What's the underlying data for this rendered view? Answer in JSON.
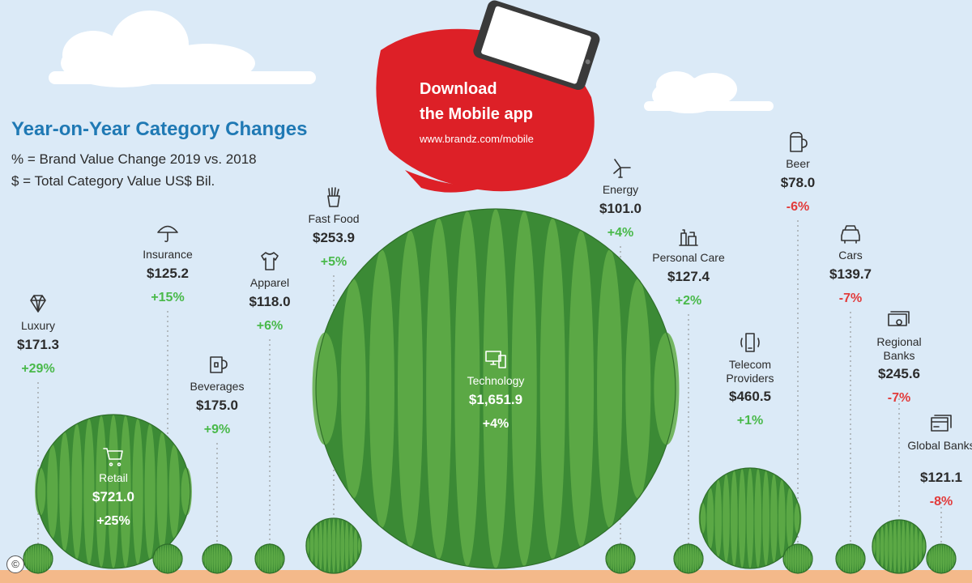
{
  "header": {
    "title": "Year-on-Year Category Changes",
    "legend_pct": "% = Brand Value Change 2019 vs. 2018",
    "legend_value": "$ = Total Category Value US$ Bil."
  },
  "promo": {
    "line1": "Download",
    "line2": "the Mobile app",
    "url": "www.brandz.com/mobile"
  },
  "copyright": "©",
  "colors": {
    "positive": "#49b94a",
    "negative": "#e23b3b",
    "melon_dark": "#3b8a35",
    "melon_light": "#62ad48",
    "promo": "#dd2027",
    "sky": "#dbeaf7",
    "ground": "#f4b98a"
  },
  "chart_data": {
    "type": "bubble",
    "size_measure": "Total Category Value US$ Bil.",
    "categories": [
      {
        "name": "Luxury",
        "value": "171.3",
        "change": "+29%",
        "icon": "diamond-icon",
        "size": 171.3
      },
      {
        "name": "Retail",
        "value": "721.0",
        "change": "+25%",
        "icon": "shopping-cart-icon",
        "size": 721.0
      },
      {
        "name": "Insurance",
        "value": "125.2",
        "change": "+15%",
        "icon": "umbrella-icon",
        "size": 125.2
      },
      {
        "name": "Beverages",
        "value": "175.0",
        "change": "+9%",
        "icon": "mug-icon",
        "size": 175.0
      },
      {
        "name": "Apparel",
        "value": "118.0",
        "change": "+6%",
        "icon": "tshirt-icon",
        "size": 118.0
      },
      {
        "name": "Fast Food",
        "value": "253.9",
        "change": "+5%",
        "icon": "fries-icon",
        "size": 253.9
      },
      {
        "name": "Technology",
        "value": "1,651.9",
        "change": "+4%",
        "icon": "devices-icon",
        "size": 1651.9
      },
      {
        "name": "Energy",
        "value": "101.0",
        "change": "+4%",
        "icon": "wind-turbine-icon",
        "size": 101.0
      },
      {
        "name": "Personal Care",
        "value": "127.4",
        "change": "+2%",
        "icon": "bottles-icon",
        "size": 127.4
      },
      {
        "name": "Telecom Providers",
        "value": "460.5",
        "change": "+1%",
        "icon": "phone-icon",
        "size": 460.5
      },
      {
        "name": "Beer",
        "value": "78.0",
        "change": "-6%",
        "icon": "beer-mug-icon",
        "size": 78.0
      },
      {
        "name": "Cars",
        "value": "139.7",
        "change": "-7%",
        "icon": "car-icon",
        "size": 139.7
      },
      {
        "name": "Regional Banks",
        "value": "245.6",
        "change": "-7%",
        "icon": "banknote-icon",
        "size": 245.6
      },
      {
        "name": "Global Banks",
        "value": "121.1",
        "change": "-8%",
        "icon": "credit-card-icon",
        "size": 121.1
      }
    ]
  }
}
